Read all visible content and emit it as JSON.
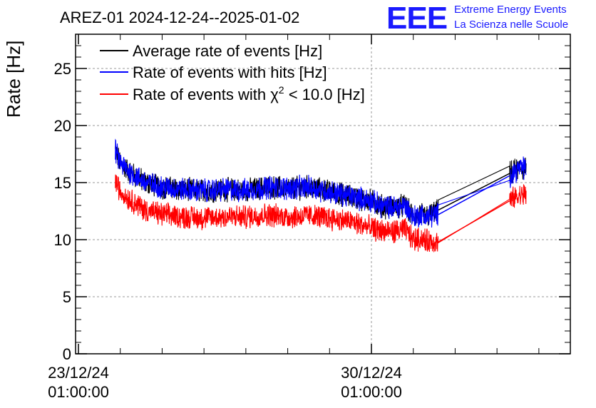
{
  "chart_data": {
    "type": "line",
    "title": "AREZ-01 2024-12-24--2025-01-02",
    "ylabel": "Rate [Hz]",
    "xlabel": "",
    "ylim": [
      0,
      28
    ],
    "yticks": [
      0,
      5,
      10,
      15,
      20,
      25
    ],
    "x_unit": "days",
    "xlim": [
      0,
      11.8
    ],
    "x_tick_labels": [
      {
        "x": 0,
        "line1": "23/12/24",
        "line2": "01:00:00"
      },
      {
        "x": 7,
        "line1": "30/12/24",
        "line2": "01:00:00"
      }
    ],
    "grid": true,
    "legend_position": "top-left",
    "series": [
      {
        "name": "Average rate of events [Hz]",
        "color": "#000000",
        "points": [
          [
            0.88,
            17.8
          ],
          [
            1.0,
            16.7
          ],
          [
            1.2,
            16.0
          ],
          [
            1.6,
            15.0
          ],
          [
            2.0,
            14.6
          ],
          [
            2.5,
            14.4
          ],
          [
            3.0,
            14.3
          ],
          [
            3.5,
            14.4
          ],
          [
            4.0,
            14.3
          ],
          [
            4.5,
            14.6
          ],
          [
            5.0,
            14.5
          ],
          [
            5.5,
            14.6
          ],
          [
            6.0,
            14.2
          ],
          [
            6.5,
            13.8
          ],
          [
            7.0,
            13.4
          ],
          [
            7.2,
            13.0
          ],
          [
            7.5,
            12.8
          ],
          [
            7.8,
            13.0
          ],
          [
            8.0,
            12.0
          ],
          [
            8.2,
            12.2
          ],
          [
            8.3,
            12.0
          ],
          [
            8.6,
            12.6
          ],
          [
            10.3,
            15.8
          ],
          [
            10.5,
            16.2
          ],
          [
            10.7,
            16.3
          ]
        ]
      },
      {
        "name": "Rate of events with hits [Hz]",
        "color": "#0000ff",
        "points": [
          [
            0.88,
            17.8
          ],
          [
            1.0,
            16.7
          ],
          [
            1.2,
            16.0
          ],
          [
            1.6,
            15.0
          ],
          [
            2.0,
            14.6
          ],
          [
            2.5,
            14.4
          ],
          [
            3.0,
            14.3
          ],
          [
            3.5,
            14.4
          ],
          [
            4.0,
            14.3
          ],
          [
            4.5,
            14.6
          ],
          [
            5.0,
            14.5
          ],
          [
            5.5,
            14.6
          ],
          [
            6.0,
            14.2
          ],
          [
            6.5,
            13.8
          ],
          [
            7.0,
            13.4
          ],
          [
            7.2,
            13.0
          ],
          [
            7.5,
            12.8
          ],
          [
            7.8,
            13.0
          ],
          [
            8.0,
            12.0
          ],
          [
            8.2,
            12.2
          ],
          [
            8.3,
            12.0
          ],
          [
            8.6,
            12.2
          ],
          [
            10.3,
            15.6
          ],
          [
            10.5,
            16.2
          ],
          [
            10.7,
            16.3
          ]
        ]
      },
      {
        "name": "Rate of events with χ² < 10.0 [Hz]",
        "color": "#ff0000",
        "points": [
          [
            0.88,
            15.2
          ],
          [
            1.0,
            14.2
          ],
          [
            1.2,
            13.6
          ],
          [
            1.6,
            12.6
          ],
          [
            2.0,
            12.2
          ],
          [
            2.5,
            12.0
          ],
          [
            3.0,
            11.9
          ],
          [
            3.5,
            12.0
          ],
          [
            4.0,
            12.0
          ],
          [
            4.5,
            12.2
          ],
          [
            5.0,
            12.0
          ],
          [
            5.5,
            12.1
          ],
          [
            6.0,
            11.9
          ],
          [
            6.5,
            11.6
          ],
          [
            7.0,
            11.0
          ],
          [
            7.2,
            10.8
          ],
          [
            7.5,
            10.7
          ],
          [
            7.8,
            10.9
          ],
          [
            8.0,
            10.0
          ],
          [
            8.2,
            10.1
          ],
          [
            8.3,
            9.9
          ],
          [
            8.6,
            9.8
          ],
          [
            10.3,
            13.4
          ],
          [
            10.5,
            13.8
          ],
          [
            10.7,
            14.0
          ]
        ]
      }
    ],
    "noise_amplitude": 0.9
  },
  "logo": {
    "letters": "EEE",
    "line1": "Extreme Energy Events",
    "line2": "La Scienza nelle Scuole"
  },
  "legend": [
    {
      "label": "Average rate of events [Hz]",
      "color": "#000000"
    },
    {
      "label": "Rate of events with hits [Hz]",
      "color": "#0000ff"
    },
    {
      "label_pre": "Rate of events with ",
      "label_chi": "χ",
      "label_sup": "2",
      "label_post": " < 10.0 [Hz]",
      "color": "#ff0000"
    }
  ]
}
